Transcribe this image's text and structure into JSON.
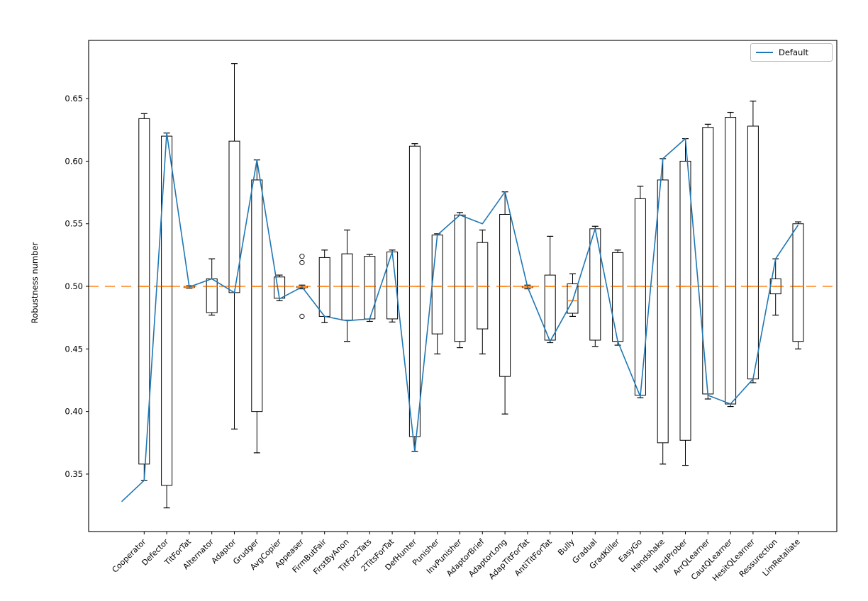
{
  "chart_data": {
    "type": "box+line",
    "title": "",
    "ylabel": "Robustness number",
    "xlabel": "",
    "grid": false,
    "legend": {
      "label": "Default",
      "color": "#1f77b4",
      "position": "upper right"
    },
    "colors": {
      "line": "#1f77b4",
      "median": "#ff7f0e",
      "reference": "#ff7f0e",
      "box": "#000000",
      "frame": "#000000"
    },
    "ylim": [
      0.3041,
      0.6965
    ],
    "y_ticks": [
      0.35,
      0.4,
      0.45,
      0.5,
      0.55,
      0.6,
      0.65
    ],
    "y_tick_labels": [
      "0.35",
      "0.40",
      "0.45",
      "0.50",
      "0.55",
      "0.60",
      "0.65"
    ],
    "reference_line": {
      "y": 0.5,
      "style": "dashed"
    },
    "categories": [
      "Cooperator",
      "Defector",
      "TitForTat",
      "Alternator",
      "Adaptor",
      "Grudger",
      "AvgCopier",
      "Appeaser",
      "FirmButFair",
      "FirstByAnon",
      "TitFor2Tats",
      "2TitsForTat",
      "DefHunter",
      "Punisher",
      "InvPunisher",
      "AdaptorBrief",
      "AdaptorLong",
      "AdapTitForTat",
      "AntiTitForTat",
      "Bully",
      "Gradual",
      "GradKiller",
      "EasyGo",
      "Handshake",
      "HardProber",
      "ArrQLearner",
      "CautQLearner",
      "HesitQLearner",
      "Ressurection",
      "LimRetaliate"
    ],
    "boxes": [
      {
        "whisker_lo": 0.345,
        "q1": 0.358,
        "median": 0.5,
        "q3": 0.634,
        "whisker_hi": 0.638,
        "outliers": []
      },
      {
        "whisker_lo": 0.323,
        "q1": 0.341,
        "median": 0.5,
        "q3": 0.62,
        "whisker_hi": 0.6225,
        "outliers": []
      },
      {
        "whisker_lo": 0.4985,
        "q1": 0.499,
        "median": 0.4995,
        "q3": 0.5,
        "whisker_hi": 0.5005,
        "outliers": []
      },
      {
        "whisker_lo": 0.477,
        "q1": 0.479,
        "median": 0.5,
        "q3": 0.506,
        "whisker_hi": 0.522,
        "outliers": []
      },
      {
        "whisker_lo": 0.386,
        "q1": 0.495,
        "median": 0.5,
        "q3": 0.616,
        "whisker_hi": 0.678,
        "outliers": []
      },
      {
        "whisker_lo": 0.367,
        "q1": 0.4,
        "median": 0.5,
        "q3": 0.585,
        "whisker_hi": 0.601,
        "outliers": []
      },
      {
        "whisker_lo": 0.4885,
        "q1": 0.4905,
        "median": 0.5,
        "q3": 0.5075,
        "whisker_hi": 0.509,
        "outliers": []
      },
      {
        "whisker_lo": 0.498,
        "q1": 0.499,
        "median": 0.4995,
        "q3": 0.5,
        "whisker_hi": 0.501,
        "outliers": [
          0.519,
          0.524,
          0.476
        ]
      },
      {
        "whisker_lo": 0.471,
        "q1": 0.476,
        "median": 0.5,
        "q3": 0.523,
        "whisker_hi": 0.529,
        "outliers": []
      },
      {
        "whisker_lo": 0.456,
        "q1": 0.473,
        "median": 0.5,
        "q3": 0.526,
        "whisker_hi": 0.545,
        "outliers": []
      },
      {
        "whisker_lo": 0.472,
        "q1": 0.474,
        "median": 0.5,
        "q3": 0.524,
        "whisker_hi": 0.5255,
        "outliers": []
      },
      {
        "whisker_lo": 0.4715,
        "q1": 0.474,
        "median": 0.5,
        "q3": 0.5275,
        "whisker_hi": 0.529,
        "outliers": []
      },
      {
        "whisker_lo": 0.368,
        "q1": 0.38,
        "median": 0.5,
        "q3": 0.612,
        "whisker_hi": 0.614,
        "outliers": []
      },
      {
        "whisker_lo": 0.446,
        "q1": 0.462,
        "median": 0.5,
        "q3": 0.541,
        "whisker_hi": 0.542,
        "outliers": []
      },
      {
        "whisker_lo": 0.451,
        "q1": 0.456,
        "median": 0.5,
        "q3": 0.557,
        "whisker_hi": 0.559,
        "outliers": []
      },
      {
        "whisker_lo": 0.446,
        "q1": 0.466,
        "median": 0.5,
        "q3": 0.535,
        "whisker_hi": 0.545,
        "outliers": []
      },
      {
        "whisker_lo": 0.398,
        "q1": 0.428,
        "median": 0.5,
        "q3": 0.5575,
        "whisker_hi": 0.5755,
        "outliers": []
      },
      {
        "whisker_lo": 0.498,
        "q1": 0.499,
        "median": 0.4995,
        "q3": 0.5,
        "whisker_hi": 0.501,
        "outliers": []
      },
      {
        "whisker_lo": 0.455,
        "q1": 0.457,
        "median": 0.5,
        "q3": 0.509,
        "whisker_hi": 0.54,
        "outliers": []
      },
      {
        "whisker_lo": 0.476,
        "q1": 0.4785,
        "median": 0.4885,
        "q3": 0.502,
        "whisker_hi": 0.51,
        "outliers": []
      },
      {
        "whisker_lo": 0.452,
        "q1": 0.457,
        "median": 0.5,
        "q3": 0.546,
        "whisker_hi": 0.548,
        "outliers": []
      },
      {
        "whisker_lo": 0.453,
        "q1": 0.456,
        "median": 0.5,
        "q3": 0.527,
        "whisker_hi": 0.529,
        "outliers": []
      },
      {
        "whisker_lo": 0.411,
        "q1": 0.413,
        "median": 0.5,
        "q3": 0.57,
        "whisker_hi": 0.58,
        "outliers": []
      },
      {
        "whisker_lo": 0.358,
        "q1": 0.375,
        "median": 0.5,
        "q3": 0.585,
        "whisker_hi": 0.602,
        "outliers": []
      },
      {
        "whisker_lo": 0.357,
        "q1": 0.377,
        "median": 0.5,
        "q3": 0.6,
        "whisker_hi": 0.618,
        "outliers": []
      },
      {
        "whisker_lo": 0.41,
        "q1": 0.414,
        "median": 0.5,
        "q3": 0.627,
        "whisker_hi": 0.6295,
        "outliers": []
      },
      {
        "whisker_lo": 0.404,
        "q1": 0.406,
        "median": 0.5,
        "q3": 0.635,
        "whisker_hi": 0.639,
        "outliers": []
      },
      {
        "whisker_lo": 0.423,
        "q1": 0.426,
        "median": 0.5,
        "q3": 0.628,
        "whisker_hi": 0.648,
        "outliers": []
      },
      {
        "whisker_lo": 0.477,
        "q1": 0.494,
        "median": 0.5,
        "q3": 0.506,
        "whisker_hi": 0.522,
        "outliers": []
      },
      {
        "whisker_lo": 0.45,
        "q1": 0.456,
        "median": 0.5,
        "q3": 0.55,
        "whisker_hi": 0.5515,
        "outliers": []
      }
    ],
    "line": {
      "name": "Default",
      "lead_in_value": 0.328,
      "values": [
        0.345,
        0.6225,
        0.4995,
        0.506,
        0.495,
        0.601,
        0.49,
        0.4995,
        0.476,
        0.4725,
        0.474,
        0.5275,
        0.368,
        0.541,
        0.557,
        0.55,
        0.5755,
        0.4995,
        0.456,
        0.4885,
        0.546,
        0.456,
        0.412,
        0.602,
        0.618,
        0.413,
        0.406,
        0.426,
        0.522,
        0.549
      ]
    }
  }
}
